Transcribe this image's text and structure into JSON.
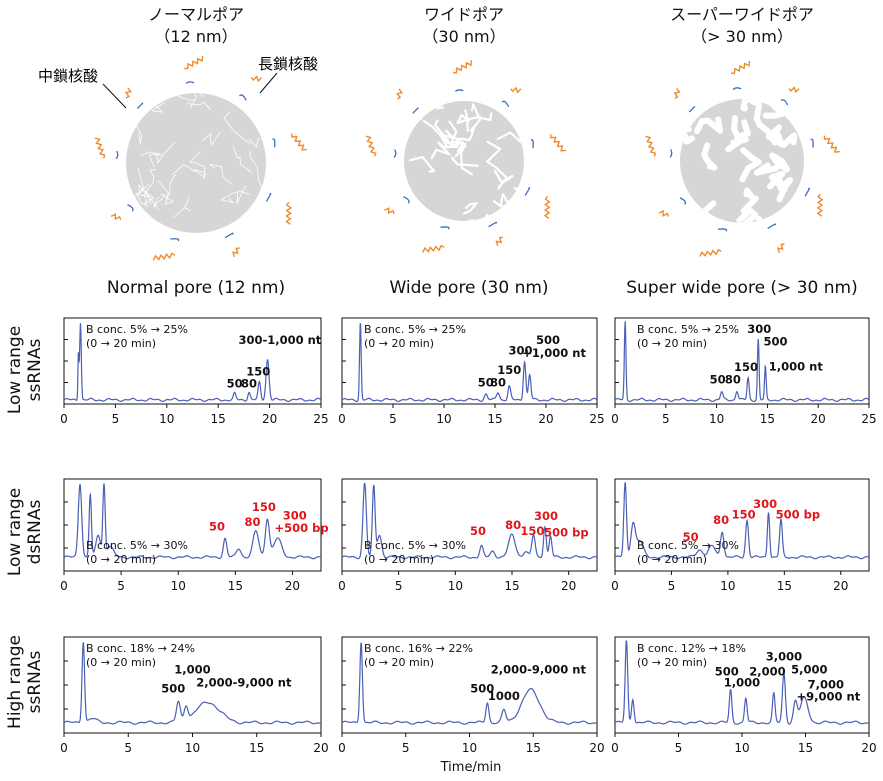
{
  "pores": [
    {
      "title": "ノーマルポア",
      "size": "（12 nm）"
    },
    {
      "title": "ワイドポア",
      "size": "（30 nm）"
    },
    {
      "title": "スーパーワイドポア",
      "size": "（> 30 nm）"
    }
  ],
  "annotations": {
    "medium_chain": "中鎖核酸",
    "long_chain": "長鎖核酸"
  },
  "columns": [
    "Normal pore (12 nm)",
    "Wide pore (30 nm)",
    "Super wide pore (> 30 nm)"
  ],
  "rows": [
    {
      "line1": "Low range",
      "line2": "ssRNAs"
    },
    {
      "line1": "Low range",
      "line2": "dsRNAs"
    },
    {
      "line1": "High range",
      "line2": "ssRNAs"
    }
  ],
  "xlabel": "Time/min",
  "colors": {
    "trace": "#4a5fb5",
    "label_black": "#111111",
    "label_red": "#e0161b",
    "particle": "#d6d6d6",
    "chain_orange": "#f08a2c",
    "arrow_blue": "#3a6fc0"
  },
  "chart_data": [
    {
      "type": "line",
      "row": 0,
      "col": 0,
      "title": "Normal pore (12 nm) – Low range ssRNAs",
      "xlim": [
        0,
        25
      ],
      "xticks": [
        0,
        5,
        10,
        15,
        20,
        25
      ],
      "note1": "B conc. 5% → 25%",
      "note2": "(0 → 20 min)",
      "peaks": [
        {
          "t": 1.6,
          "h": 1.0,
          "w": 0.08
        },
        {
          "t": 1.4,
          "h": 0.6,
          "w": 0.05
        },
        {
          "t": 16.6,
          "h": 0.08,
          "w": 0.12
        },
        {
          "t": 18.0,
          "h": 0.1,
          "w": 0.12
        },
        {
          "t": 19.0,
          "h": 0.22,
          "w": 0.12
        },
        {
          "t": 19.8,
          "h": 0.52,
          "w": 0.15
        }
      ],
      "labels": [
        {
          "text": "50",
          "t": 16.6,
          "y": 0.16,
          "red": false
        },
        {
          "text": "80",
          "t": 18.0,
          "y": 0.16,
          "red": false
        },
        {
          "text": "150",
          "t": 18.9,
          "y": 0.31,
          "red": false
        },
        {
          "text": "300-1,000 nt",
          "t": 21.0,
          "y": 0.72,
          "red": false
        }
      ]
    },
    {
      "type": "line",
      "row": 0,
      "col": 1,
      "title": "Wide pore (30 nm) – Low range ssRNAs",
      "xlim": [
        0,
        25
      ],
      "xticks": [
        0,
        5,
        10,
        15,
        20,
        25
      ],
      "note1": "B conc. 5% → 25%",
      "note2": "(0 → 20 min)",
      "peaks": [
        {
          "t": 1.8,
          "h": 1.0,
          "w": 0.08
        },
        {
          "t": 14.1,
          "h": 0.07,
          "w": 0.15
        },
        {
          "t": 15.3,
          "h": 0.1,
          "w": 0.15
        },
        {
          "t": 16.4,
          "h": 0.17,
          "w": 0.13
        },
        {
          "t": 17.9,
          "h": 0.5,
          "w": 0.12
        },
        {
          "t": 18.4,
          "h": 0.32,
          "w": 0.12
        }
      ],
      "labels": [
        {
          "text": "50",
          "t": 14.1,
          "y": 0.17,
          "red": false
        },
        {
          "text": "80",
          "t": 15.3,
          "y": 0.17,
          "red": false
        },
        {
          "text": "150",
          "t": 16.4,
          "y": 0.33,
          "red": false
        },
        {
          "text": "300",
          "t": 17.5,
          "y": 0.58,
          "red": false
        },
        {
          "text": "500",
          "t": 20.2,
          "y": 0.72,
          "red": false
        },
        {
          "text": "+1,000 nt",
          "t": 20.8,
          "y": 0.55,
          "red": false
        }
      ]
    },
    {
      "type": "line",
      "row": 0,
      "col": 2,
      "title": "Super wide pore (> 30 nm) – Low range ssRNAs",
      "xlim": [
        0,
        25
      ],
      "xticks": [
        0,
        5,
        10,
        15,
        20,
        25
      ],
      "note1": "B conc. 5% → 25%",
      "note2": "(0 → 20 min)",
      "peaks": [
        {
          "t": 1.0,
          "h": 1.0,
          "w": 0.08
        },
        {
          "t": 10.5,
          "h": 0.1,
          "w": 0.12
        },
        {
          "t": 12.0,
          "h": 0.12,
          "w": 0.12
        },
        {
          "t": 13.1,
          "h": 0.28,
          "w": 0.1
        },
        {
          "t": 14.1,
          "h": 0.78,
          "w": 0.08
        },
        {
          "t": 14.8,
          "h": 0.42,
          "w": 0.08
        }
      ],
      "labels": [
        {
          "text": "50",
          "t": 10.1,
          "y": 0.21,
          "red": false
        },
        {
          "text": "80",
          "t": 11.6,
          "y": 0.21,
          "red": false
        },
        {
          "text": "150",
          "t": 12.9,
          "y": 0.37,
          "red": false
        },
        {
          "text": "300",
          "t": 14.2,
          "y": 0.86,
          "red": false
        },
        {
          "text": "500",
          "t": 15.8,
          "y": 0.7,
          "red": false
        },
        {
          "text": "1,000 nt",
          "t": 17.8,
          "y": 0.38,
          "red": false
        }
      ]
    },
    {
      "type": "line",
      "row": 1,
      "col": 0,
      "title": "Normal pore (12 nm) – Low range dsRNAs",
      "xlim": [
        0,
        22.5
      ],
      "xticks": [
        0,
        5,
        10,
        15,
        20
      ],
      "note1": "B conc. 5% → 30%",
      "note2": "(0 → 20 min)",
      "peaks": [
        {
          "t": 1.4,
          "h": 1.0,
          "w": 0.15
        },
        {
          "t": 2.3,
          "h": 0.85,
          "w": 0.1
        },
        {
          "t": 3.0,
          "h": 0.3,
          "w": 0.2
        },
        {
          "t": 3.5,
          "h": 0.95,
          "w": 0.1
        },
        {
          "t": 4.0,
          "h": 0.15,
          "w": 0.3
        },
        {
          "t": 14.1,
          "h": 0.25,
          "w": 0.15
        },
        {
          "t": 15.3,
          "h": 0.12,
          "w": 0.2
        },
        {
          "t": 16.8,
          "h": 0.35,
          "w": 0.25
        },
        {
          "t": 17.8,
          "h": 0.52,
          "w": 0.18
        },
        {
          "t": 18.7,
          "h": 0.25,
          "w": 0.35
        }
      ],
      "labels": [
        {
          "text": "50",
          "t": 13.4,
          "y": 0.36,
          "red": true
        },
        {
          "text": "80",
          "t": 16.5,
          "y": 0.42,
          "red": true
        },
        {
          "text": "150",
          "t": 17.5,
          "y": 0.62,
          "red": true
        },
        {
          "text": "300",
          "t": 20.2,
          "y": 0.51,
          "red": true
        },
        {
          "text": "+500 bp",
          "t": 20.8,
          "y": 0.34,
          "red": true
        }
      ]
    },
    {
      "type": "line",
      "row": 1,
      "col": 1,
      "title": "Wide pore (30 nm) – Low range dsRNAs",
      "xlim": [
        0,
        22.5
      ],
      "xticks": [
        0,
        5,
        10,
        15,
        20
      ],
      "note1": "B conc. 5% → 30%",
      "note2": "(0 → 20 min)",
      "peaks": [
        {
          "t": 2.0,
          "h": 1.0,
          "w": 0.15
        },
        {
          "t": 2.8,
          "h": 0.95,
          "w": 0.12
        },
        {
          "t": 3.3,
          "h": 0.3,
          "w": 0.2
        },
        {
          "t": 12.3,
          "h": 0.15,
          "w": 0.15
        },
        {
          "t": 13.3,
          "h": 0.08,
          "w": 0.2
        },
        {
          "t": 15.0,
          "h": 0.3,
          "w": 0.3
        },
        {
          "t": 16.2,
          "h": 0.08,
          "w": 0.2
        },
        {
          "t": 16.9,
          "h": 0.3,
          "w": 0.15
        },
        {
          "t": 17.9,
          "h": 0.42,
          "w": 0.12
        },
        {
          "t": 18.4,
          "h": 0.28,
          "w": 0.12
        }
      ],
      "labels": [
        {
          "text": "50",
          "t": 12.0,
          "y": 0.3,
          "red": true
        },
        {
          "text": "80",
          "t": 15.1,
          "y": 0.38,
          "red": true
        },
        {
          "text": "150",
          "t": 16.8,
          "y": 0.3,
          "red": true
        },
        {
          "text": "300",
          "t": 18.0,
          "y": 0.5,
          "red": true
        },
        {
          "text": "500 bp",
          "t": 19.8,
          "y": 0.28,
          "red": true
        }
      ]
    },
    {
      "type": "line",
      "row": 1,
      "col": 2,
      "title": "Super wide pore (> 30 nm) – Low range dsRNAs",
      "xlim": [
        0,
        22.5
      ],
      "xticks": [
        0,
        5,
        10,
        15,
        20
      ],
      "note1": "B conc. 5% → 30%",
      "note2": "(0 → 20 min)",
      "peaks": [
        {
          "t": 0.9,
          "h": 1.0,
          "w": 0.12
        },
        {
          "t": 1.6,
          "h": 0.45,
          "w": 0.2
        },
        {
          "t": 2.2,
          "h": 0.22,
          "w": 0.3
        },
        {
          "t": 7.5,
          "h": 0.1,
          "w": 0.3
        },
        {
          "t": 8.6,
          "h": 0.15,
          "w": 0.3
        },
        {
          "t": 9.5,
          "h": 0.35,
          "w": 0.15
        },
        {
          "t": 11.7,
          "h": 0.5,
          "w": 0.13
        },
        {
          "t": 13.6,
          "h": 0.62,
          "w": 0.1
        },
        {
          "t": 14.7,
          "h": 0.5,
          "w": 0.12
        }
      ],
      "labels": [
        {
          "text": "50",
          "t": 6.7,
          "y": 0.22,
          "red": true
        },
        {
          "text": "80",
          "t": 9.4,
          "y": 0.45,
          "red": true
        },
        {
          "text": "150",
          "t": 11.4,
          "y": 0.52,
          "red": true
        },
        {
          "text": "300",
          "t": 13.3,
          "y": 0.66,
          "red": true
        },
        {
          "text": "500 bp",
          "t": 16.2,
          "y": 0.52,
          "red": true
        }
      ]
    },
    {
      "type": "line",
      "row": 2,
      "col": 0,
      "title": "Normal pore (12 nm) – High range ssRNAs",
      "xlim": [
        0,
        20
      ],
      "xticks": [
        0,
        5,
        10,
        15,
        20
      ],
      "note1": "B conc. 18% → 24%",
      "note2": "(0 → 20 min)",
      "peaks": [
        {
          "t": 1.5,
          "h": 1.0,
          "w": 0.1
        },
        {
          "t": 2.2,
          "h": 0.05,
          "w": 0.3
        },
        {
          "t": 8.9,
          "h": 0.25,
          "w": 0.15
        },
        {
          "t": 9.5,
          "h": 0.18,
          "w": 0.15
        },
        {
          "t": 11.2,
          "h": 0.25,
          "w": 0.9
        }
      ],
      "labels": [
        {
          "text": "500",
          "t": 8.5,
          "y": 0.37,
          "red": false
        },
        {
          "text": "1,000",
          "t": 10.0,
          "y": 0.6,
          "red": false
        },
        {
          "text": "2,000-9,000 nt",
          "t": 14.0,
          "y": 0.44,
          "red": false
        }
      ]
    },
    {
      "type": "line",
      "row": 2,
      "col": 1,
      "title": "Wide pore (30 nm) – High range ssRNAs",
      "xlim": [
        0,
        20
      ],
      "xticks": [
        0,
        5,
        10,
        15,
        20
      ],
      "note1": "B conc. 16% → 22%",
      "note2": "(0 → 20 min)",
      "peaks": [
        {
          "t": 1.5,
          "h": 1.0,
          "w": 0.1
        },
        {
          "t": 11.4,
          "h": 0.25,
          "w": 0.12
        },
        {
          "t": 12.7,
          "h": 0.15,
          "w": 0.15
        },
        {
          "t": 14.8,
          "h": 0.4,
          "w": 0.7
        }
      ],
      "labels": [
        {
          "text": "500",
          "t": 11.0,
          "y": 0.37,
          "red": false
        },
        {
          "text": "1000",
          "t": 12.7,
          "y": 0.28,
          "red": false
        },
        {
          "text": "2,000-9,000 nt",
          "t": 15.4,
          "y": 0.6,
          "red": false
        }
      ]
    },
    {
      "type": "line",
      "row": 2,
      "col": 2,
      "title": "Super wide pore (> 30 nm) – High range ssRNAs",
      "xlim": [
        0,
        20
      ],
      "xticks": [
        0,
        5,
        10,
        15,
        20
      ],
      "note1": "B conc. 12% → 18%",
      "note2": "(0 → 20 min)",
      "peaks": [
        {
          "t": 0.9,
          "h": 1.0,
          "w": 0.1
        },
        {
          "t": 1.4,
          "h": 0.3,
          "w": 0.1
        },
        {
          "t": 9.1,
          "h": 0.4,
          "w": 0.1
        },
        {
          "t": 10.3,
          "h": 0.3,
          "w": 0.1
        },
        {
          "t": 12.5,
          "h": 0.35,
          "w": 0.1
        },
        {
          "t": 13.3,
          "h": 0.6,
          "w": 0.12
        },
        {
          "t": 14.2,
          "h": 0.25,
          "w": 0.15
        },
        {
          "t": 14.9,
          "h": 0.3,
          "w": 0.3
        }
      ],
      "labels": [
        {
          "text": "500",
          "t": 8.8,
          "y": 0.58,
          "red": false
        },
        {
          "text": "1,000",
          "t": 10.0,
          "y": 0.44,
          "red": false
        },
        {
          "text": "2,000",
          "t": 12.0,
          "y": 0.58,
          "red": false
        },
        {
          "text": "3,000",
          "t": 13.3,
          "y": 0.76,
          "red": false
        },
        {
          "text": "5,000",
          "t": 15.3,
          "y": 0.6,
          "red": false
        },
        {
          "text": "7,000",
          "t": 16.6,
          "y": 0.42,
          "red": false
        },
        {
          "text": "+9,000 nt",
          "t": 16.8,
          "y": 0.27,
          "red": false
        }
      ]
    }
  ]
}
